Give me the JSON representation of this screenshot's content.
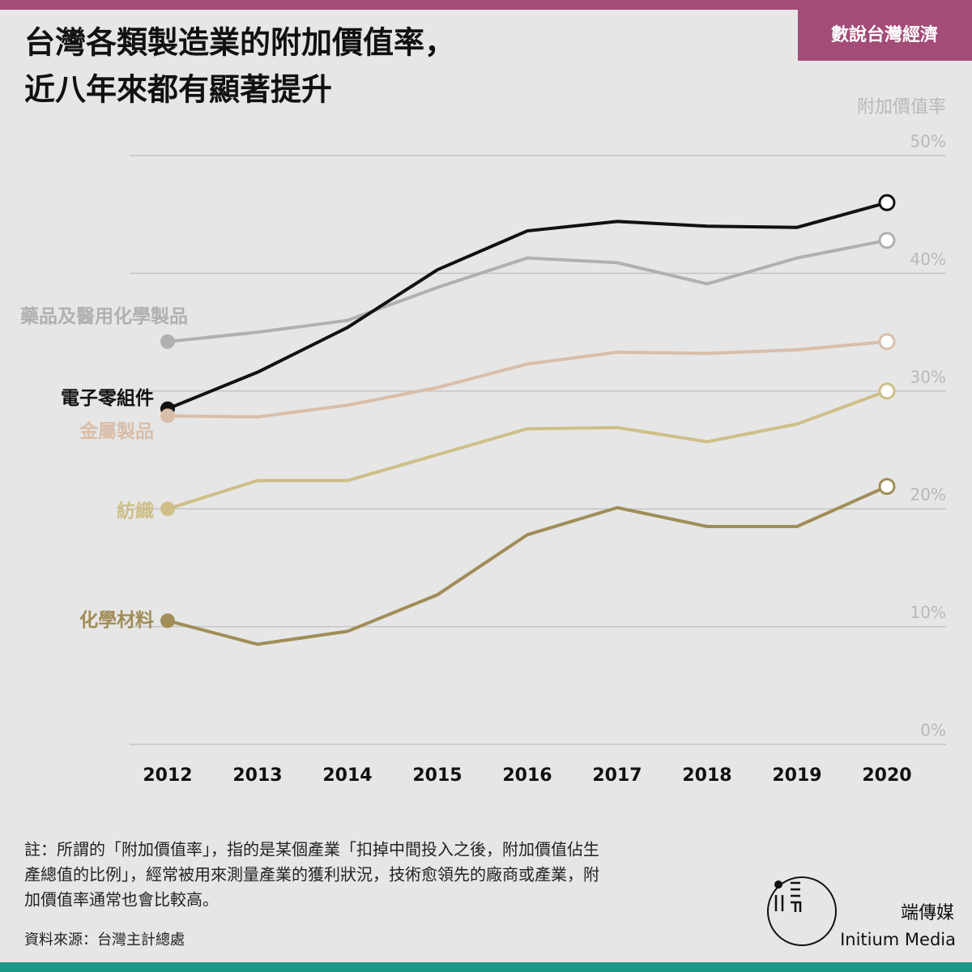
{
  "chart_data": {
    "type": "line",
    "brand": "數說台灣經濟",
    "title": [
      "台灣各類製造業的附加價值率，",
      "近八年來都有顯著提升"
    ],
    "y_label": "附加價值率",
    "categories": [
      "2012",
      "2013",
      "2014",
      "2015",
      "2016",
      "2017",
      "2018",
      "2019",
      "2020"
    ],
    "ylim": [
      0,
      50
    ],
    "yticks": [
      {
        "value": 0,
        "label": "0%"
      },
      {
        "value": 10,
        "label": "10%"
      },
      {
        "value": 20,
        "label": "20%"
      },
      {
        "value": 30,
        "label": "30%"
      },
      {
        "value": 40,
        "label": "40%"
      },
      {
        "value": 50,
        "label": "50%"
      }
    ],
    "grid": true,
    "series": [
      {
        "name": "藥品及醫用化學製品",
        "color": "#b0b0b0",
        "values": [
          34.2,
          35.0,
          36.0,
          38.8,
          41.3,
          40.9,
          39.1,
          41.3,
          42.8
        ]
      },
      {
        "name": "電子零組件",
        "color": "#111111",
        "values": [
          28.5,
          31.6,
          35.4,
          40.3,
          43.6,
          44.4,
          44.0,
          43.9,
          46.0
        ]
      },
      {
        "name": "金屬製品",
        "color": "#d9bea9",
        "values": [
          27.9,
          27.8,
          28.8,
          30.3,
          32.3,
          33.3,
          33.2,
          33.5,
          34.2
        ]
      },
      {
        "name": "紡織",
        "color": "#cebf88",
        "values": [
          20.0,
          22.4,
          22.4,
          24.6,
          26.8,
          26.9,
          25.7,
          27.2,
          30.0
        ]
      },
      {
        "name": "化學材料",
        "color": "#a08d57",
        "values": [
          10.5,
          8.5,
          9.6,
          12.7,
          17.8,
          20.1,
          18.5,
          18.5,
          21.9
        ]
      }
    ],
    "note": [
      "註：所謂的「附加價值率」，指的是某個產業「扣掉中間投入之後，附加價值佔生",
      "產總值的比例」，經常被用來測量產業的獲利狀況，技術愈領先的廠商或產業，附",
      "加價值率通常也會比較高。"
    ],
    "source": "資料來源：台灣主計總處",
    "publisher": [
      "端傳媒",
      "Initium Media"
    ]
  }
}
